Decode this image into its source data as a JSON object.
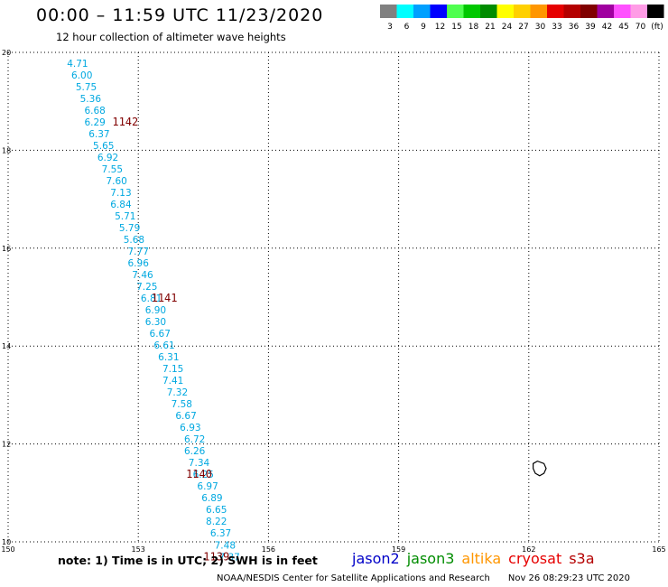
{
  "header": {
    "title": "00:00 – 11:59 UTC 11/23/2020",
    "subtitle": "12 hour collection of altimeter wave heights"
  },
  "color_scale": {
    "swatches": [
      "#808080",
      "#00ffff",
      "#00a0ff",
      "#0000ff",
      "#50ff50",
      "#00c800",
      "#008c00",
      "#ffff00",
      "#ffd000",
      "#ff9600",
      "#e60000",
      "#b40000",
      "#800000",
      "#a000a0",
      "#ff50ff",
      "#ff9ce6",
      "#000000"
    ],
    "labels": [
      "3",
      "6",
      "9",
      "12",
      "15",
      "18",
      "21",
      "24",
      "27",
      "30",
      "33",
      "36",
      "39",
      "42",
      "45",
      "70",
      "(ft)"
    ]
  },
  "chart_data": {
    "type": "scatter",
    "xlim": [
      150,
      165
    ],
    "ylim": [
      10,
      20
    ],
    "x_ticks": [
      "150",
      "153",
      "156",
      "159",
      "162",
      "165"
    ],
    "y_ticks": [
      "10",
      "12",
      "14",
      "16",
      "18",
      "20"
    ],
    "grid": true,
    "pass_color": "#00a8e0",
    "orbit_color": "#800000",
    "series": [
      {
        "values": [
          {
            "x": 151.6,
            "y": 19.78,
            "label": "4.71"
          },
          {
            "x": 151.7,
            "y": 19.54,
            "label": "6.00"
          },
          {
            "x": 151.8,
            "y": 19.3,
            "label": "5.75"
          },
          {
            "x": 151.9,
            "y": 19.06,
            "label": "5.36"
          },
          {
            "x": 152.0,
            "y": 18.82,
            "label": "6.68"
          },
          {
            "x": 152.0,
            "y": 18.58,
            "label": "6.29"
          },
          {
            "x": 152.1,
            "y": 18.34,
            "label": "6.37"
          },
          {
            "x": 152.2,
            "y": 18.1,
            "label": "5.65"
          },
          {
            "x": 152.3,
            "y": 17.86,
            "label": "6.92"
          },
          {
            "x": 152.4,
            "y": 17.62,
            "label": "7.55"
          },
          {
            "x": 152.5,
            "y": 17.38,
            "label": "7.60"
          },
          {
            "x": 152.6,
            "y": 17.14,
            "label": "7.13"
          },
          {
            "x": 152.6,
            "y": 16.9,
            "label": "6.84"
          },
          {
            "x": 152.7,
            "y": 16.66,
            "label": "5.71"
          },
          {
            "x": 152.8,
            "y": 16.42,
            "label": "5.79"
          },
          {
            "x": 152.9,
            "y": 16.18,
            "label": "5.68"
          },
          {
            "x": 153.0,
            "y": 15.94,
            "label": "7.77"
          },
          {
            "x": 153.0,
            "y": 15.7,
            "label": "6.96"
          },
          {
            "x": 153.1,
            "y": 15.46,
            "label": "7.46"
          },
          {
            "x": 153.2,
            "y": 15.22,
            "label": "7.25"
          },
          {
            "x": 153.3,
            "y": 14.98,
            "label": "6.81"
          },
          {
            "x": 153.4,
            "y": 14.74,
            "label": "6.90"
          },
          {
            "x": 153.4,
            "y": 14.5,
            "label": "6.30"
          },
          {
            "x": 153.5,
            "y": 14.26,
            "label": "6.67"
          },
          {
            "x": 153.6,
            "y": 14.02,
            "label": "6.61"
          },
          {
            "x": 153.7,
            "y": 13.78,
            "label": "6.31"
          },
          {
            "x": 153.8,
            "y": 13.54,
            "label": "7.15"
          },
          {
            "x": 153.8,
            "y": 13.3,
            "label": "7.41"
          },
          {
            "x": 153.9,
            "y": 13.06,
            "label": "7.32"
          },
          {
            "x": 154.0,
            "y": 12.82,
            "label": "7.58"
          },
          {
            "x": 154.1,
            "y": 12.58,
            "label": "6.67"
          },
          {
            "x": 154.2,
            "y": 12.34,
            "label": "6.93"
          },
          {
            "x": 154.3,
            "y": 12.1,
            "label": "6.72"
          },
          {
            "x": 154.3,
            "y": 11.86,
            "label": "6.26"
          },
          {
            "x": 154.4,
            "y": 11.62,
            "label": "7.34"
          },
          {
            "x": 154.5,
            "y": 11.38,
            "label": "6.25"
          },
          {
            "x": 154.6,
            "y": 11.14,
            "label": "6.97"
          },
          {
            "x": 154.7,
            "y": 10.9,
            "label": "6.89"
          },
          {
            "x": 154.8,
            "y": 10.66,
            "label": "6.65"
          },
          {
            "x": 154.8,
            "y": 10.42,
            "label": "8.22"
          },
          {
            "x": 154.9,
            "y": 10.18,
            "label": "6.37"
          },
          {
            "x": 155.0,
            "y": 9.94,
            "label": "7.48"
          },
          {
            "x": 155.1,
            "y": 9.7,
            "label": "7.37"
          }
        ]
      }
    ],
    "orbit_labels": [
      {
        "x": 152.4,
        "y": 18.58,
        "label": "1142"
      },
      {
        "x": 153.3,
        "y": 14.98,
        "label": "1141"
      },
      {
        "x": 154.1,
        "y": 11.38,
        "label": "1140"
      },
      {
        "x": 154.5,
        "y": 9.7,
        "label": "1139"
      }
    ],
    "land": [
      {
        "name": "island",
        "points": [
          [
            162.1,
            11.6
          ],
          [
            162.2,
            11.65
          ],
          [
            162.35,
            11.6
          ],
          [
            162.4,
            11.5
          ],
          [
            162.35,
            11.4
          ],
          [
            162.25,
            11.35
          ],
          [
            162.15,
            11.4
          ],
          [
            162.1,
            11.5
          ]
        ]
      }
    ]
  },
  "footer": {
    "note": "note:  1) Time is in UTC;  2) SWH is in feet",
    "missions": [
      {
        "name": "jason2",
        "color": "#0000c8"
      },
      {
        "name": "jason3",
        "color": "#008c00"
      },
      {
        "name": "altika",
        "color": "#ff9600"
      },
      {
        "name": "cryosat",
        "color": "#e60000"
      },
      {
        "name": "s3a",
        "color": "#b40000"
      }
    ],
    "credit": "NOAA/NESDIS Center for Satellite Applications and Research",
    "generated": "Nov 26 08:29:23 UTC 2020"
  }
}
